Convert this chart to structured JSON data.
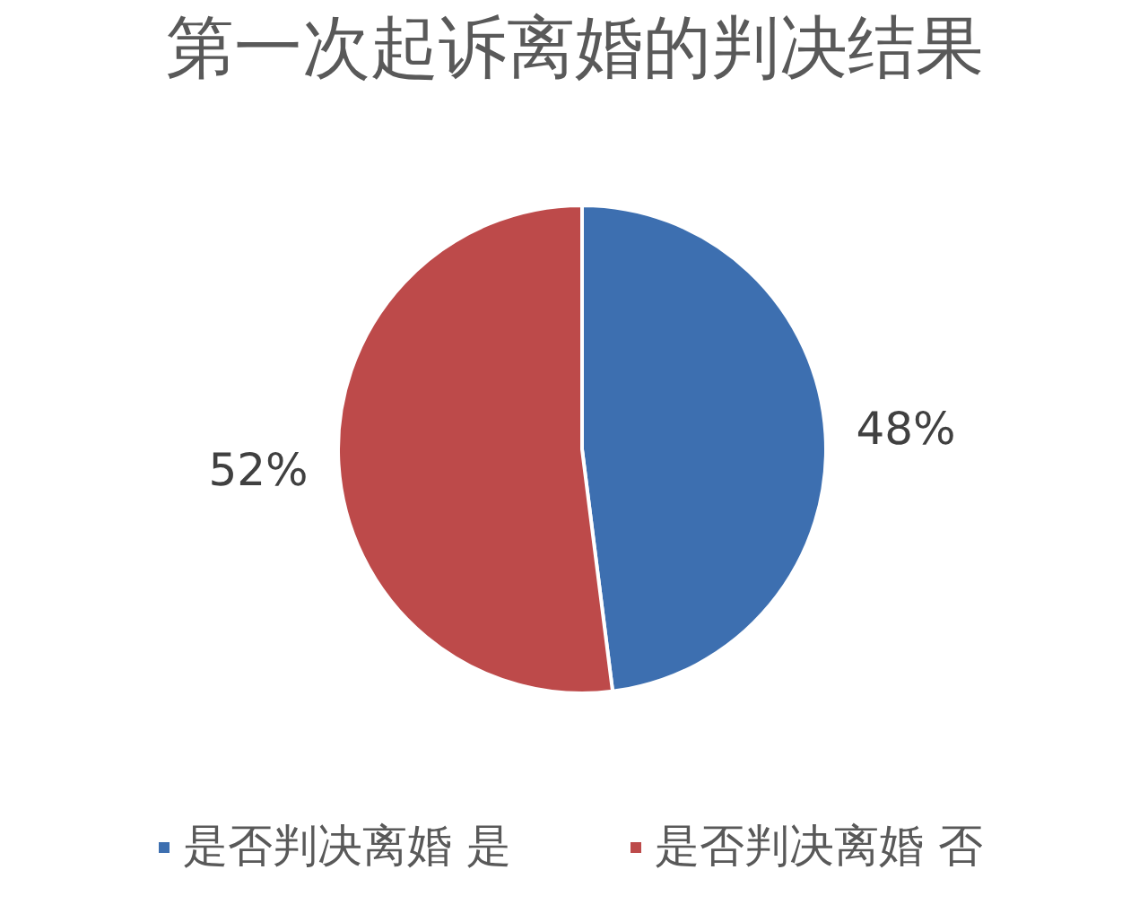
{
  "chart_data": {
    "type": "pie",
    "title": "第一次起诉离婚的判决结果",
    "categories": [
      "是否判决离婚 是",
      "是否判决离婚 否"
    ],
    "values": [
      48,
      52
    ],
    "colors": [
      "#3d6fb0",
      "#bd4a4a"
    ],
    "value_labels": [
      "48%",
      "52%"
    ],
    "legend": "bottom"
  }
}
